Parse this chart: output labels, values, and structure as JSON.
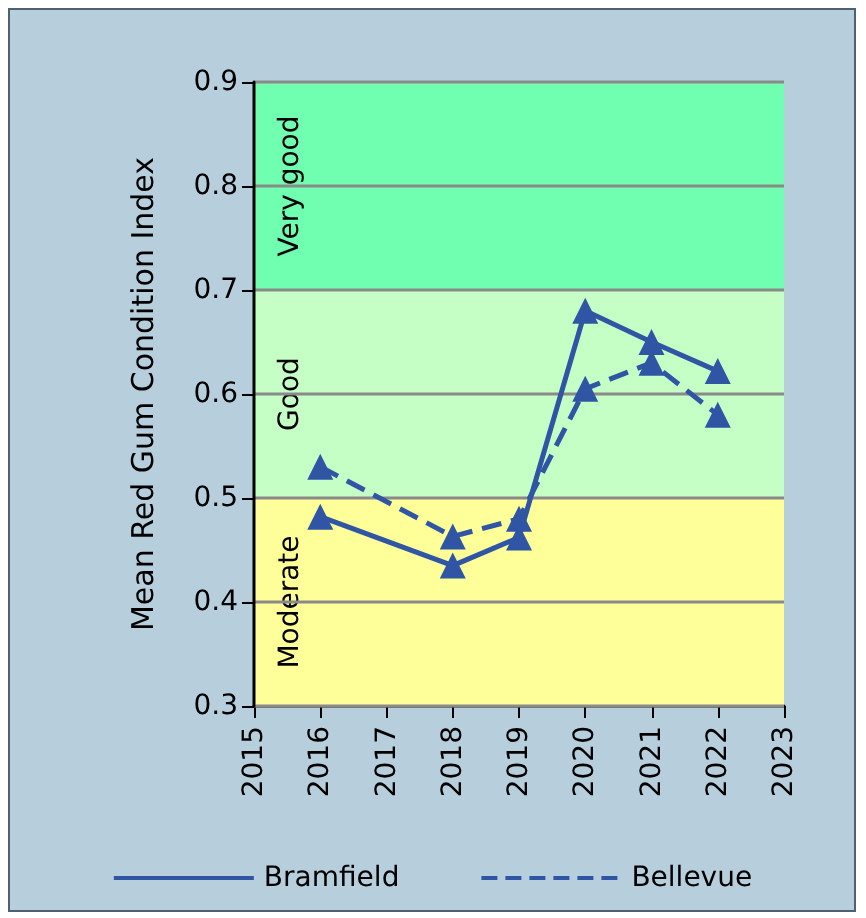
{
  "chart_data": {
    "type": "line",
    "ylabel": "Mean Red Gum Condition Index",
    "x": [
      2016,
      2018,
      2019,
      2020,
      2021,
      2022
    ],
    "series": [
      {
        "name": "Bramfield",
        "color": "#2f55a4",
        "line_style": "solid",
        "values": [
          0.482,
          0.435,
          0.462,
          0.68,
          0.65,
          0.622
        ]
      },
      {
        "name": "Bellevue",
        "color": "#2f55a4",
        "line_style": "dashed",
        "values": [
          0.53,
          0.463,
          0.48,
          0.605,
          0.63,
          0.58
        ]
      }
    ],
    "xlim": [
      2015,
      2023
    ],
    "xticks": [
      2015,
      2016,
      2017,
      2018,
      2019,
      2020,
      2021,
      2022,
      2023
    ],
    "ylim": [
      0.3,
      0.9
    ],
    "yticks": [
      0.3,
      0.4,
      0.5,
      0.6,
      0.7,
      0.8,
      0.9
    ],
    "bands": [
      {
        "axis": "y",
        "from": 0.3,
        "to": 0.5,
        "label": "Moderate",
        "color": "#ffff99"
      },
      {
        "axis": "y",
        "from": 0.5,
        "to": 0.7,
        "label": "Good",
        "color": "#c6ffc6"
      },
      {
        "axis": "y",
        "from": 0.7,
        "to": 0.9,
        "label": "Very good",
        "color": "#70ffb0"
      }
    ],
    "grid": "y",
    "legend": "bottom",
    "marker": "triangle"
  }
}
